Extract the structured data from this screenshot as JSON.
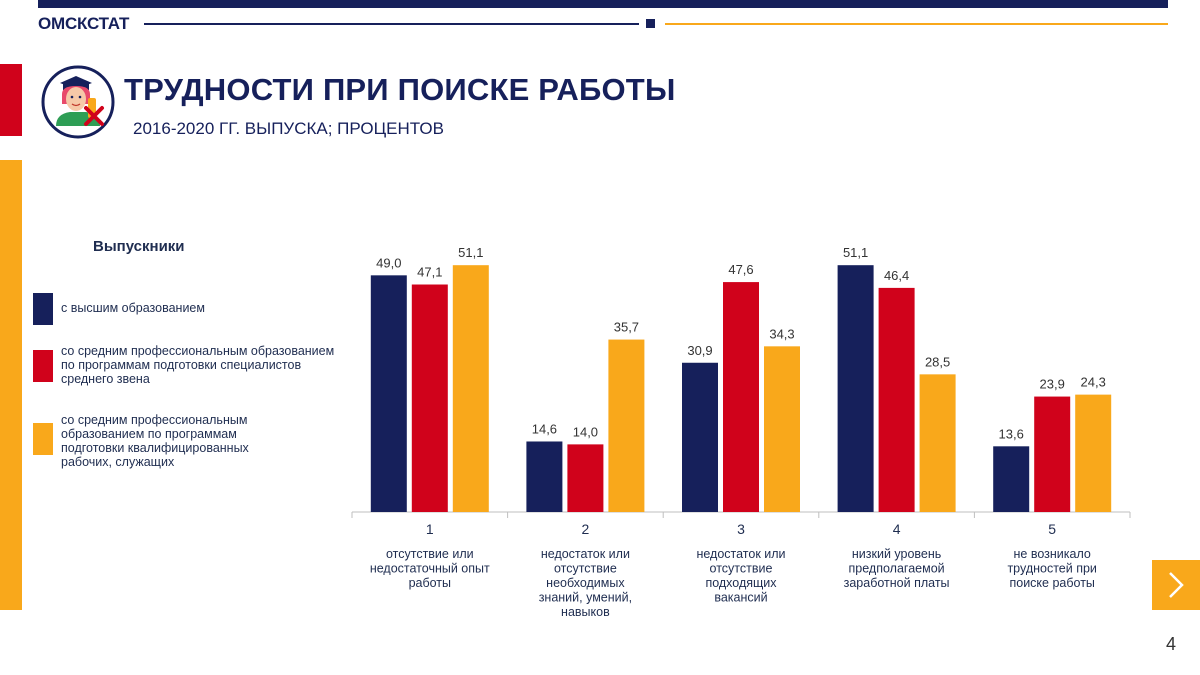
{
  "header": {
    "brand": "ОМСКСТАТ"
  },
  "title": "ТРУДНОСТИ ПРИ ПОИСКЕ РАБОТЫ",
  "subtitle": "2016-2020 ГГ. ВЫПУСКА; ПРОЦЕНТОВ",
  "legend": {
    "title": "Выпускники",
    "items": [
      {
        "label": "с высшим образованием",
        "color": "#16205b"
      },
      {
        "label": "со средним профессиональным образованием по программам подготовки специалистов среднего звена",
        "color": "#d0021b"
      },
      {
        "label": "со средним профессиональным образованием по программам подготовки квалифицированных рабочих, служащих",
        "color": "#f9a81b"
      }
    ]
  },
  "chart_data": {
    "type": "bar",
    "categories": [
      "1",
      "2",
      "3",
      "4",
      "5"
    ],
    "category_descriptions": [
      [
        "отсутствие или",
        "недостаточный опыт",
        "работы"
      ],
      [
        "недостаток или",
        "отсутствие",
        "необходимых",
        "знаний, умений,",
        "навыков"
      ],
      [
        "недостаток или",
        "отсутствие",
        "подходящих",
        "вакансий"
      ],
      [
        "низкий уровень",
        "предполагаемой",
        "заработной платы"
      ],
      [
        "не возникало",
        "трудностей при",
        "поиске работы"
      ]
    ],
    "series": [
      {
        "name": "с высшим образованием",
        "color": "#16205b",
        "values": [
          49.0,
          14.6,
          30.9,
          51.1,
          13.6
        ],
        "labels": [
          "49,0",
          "14,6",
          "30,9",
          "51,1",
          "13,6"
        ]
      },
      {
        "name": "со средним профессиональным образованием по программам подготовки специалистов среднего звена",
        "color": "#d0021b",
        "values": [
          47.1,
          14.0,
          47.6,
          46.4,
          23.9
        ],
        "labels": [
          "47,1",
          "14,0",
          "47,6",
          "46,4",
          "23,9"
        ]
      },
      {
        "name": "со средним профессиональным образованием по программам подготовки квалифицированных рабочих, служащих",
        "color": "#f9a81b",
        "values": [
          51.1,
          35.7,
          34.3,
          28.5,
          24.3
        ],
        "labels": [
          "51,1",
          "35,7",
          "34,3",
          "28,5",
          "24,3"
        ]
      }
    ],
    "ylim": [
      0,
      60
    ],
    "grid": false,
    "legend_position": "left"
  },
  "nav": {
    "next_icon": "chevron-right-icon"
  },
  "page_number": "4"
}
